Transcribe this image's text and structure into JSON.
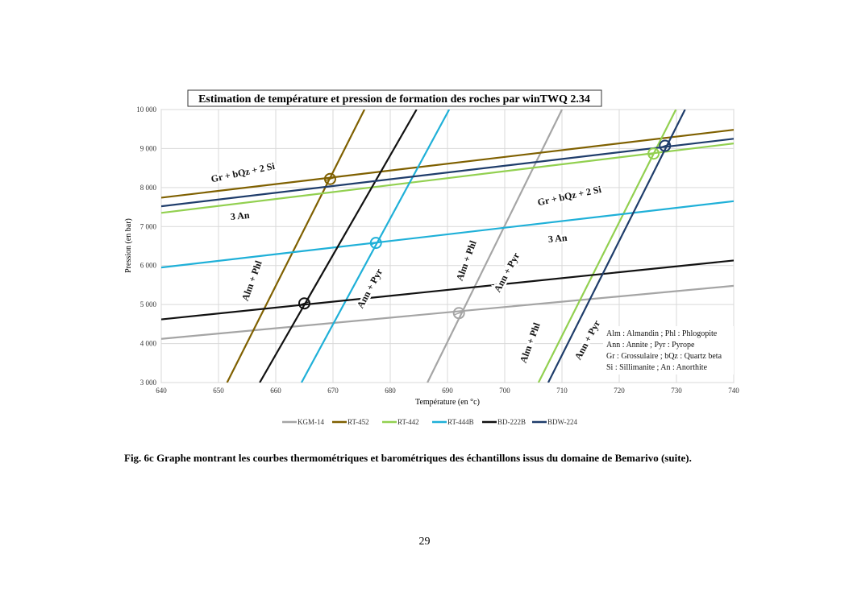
{
  "chart_data": {
    "type": "line",
    "title": "Estimation  de température et pression  de formation des roches par winTWQ  2.34",
    "x_label": "Température  (en °c)",
    "y_label": "Pression  (en bar)",
    "xlim": [
      640,
      740
    ],
    "ylim": [
      3000,
      10000
    ],
    "xticks": [
      640,
      650,
      660,
      670,
      680,
      690,
      700,
      710,
      720,
      730,
      740
    ],
    "yticks": [
      {
        "value": 3000,
        "label": "3 000"
      },
      {
        "value": 4000,
        "label": "4 000"
      },
      {
        "value": 5000,
        "label": "5 000"
      },
      {
        "value": 6000,
        "label": "6 000"
      },
      {
        "value": 7000,
        "label": "7 000"
      },
      {
        "value": 8000,
        "label": "8 000"
      },
      {
        "value": 9000,
        "label": "9 000"
      },
      {
        "value": 10000,
        "label": "10 000"
      }
    ],
    "grid": true,
    "series": [
      {
        "name": "KGM-14",
        "color": "#a5a5a5",
        "lines": [
          {
            "x": [
              640,
              740
            ],
            "values": [
              4120,
              5480
            ]
          },
          {
            "x": [
              686.5,
              710
            ],
            "values": [
              3000,
              10000
            ]
          }
        ],
        "intersection": {
          "x": 692,
          "y": 4780
        }
      },
      {
        "name": "RT-452",
        "color": "#7f6000",
        "lines": [
          {
            "x": [
              640,
              740
            ],
            "values": [
              7740,
              9480
            ]
          },
          {
            "x": [
              651.5,
              675.5
            ],
            "values": [
              3000,
              10000
            ]
          }
        ],
        "intersection": {
          "x": 669.5,
          "y": 8220
        }
      },
      {
        "name": "RT-442",
        "color": "#92d050",
        "lines": [
          {
            "x": [
              640,
              740
            ],
            "values": [
              7350,
              9130
            ]
          },
          {
            "x": [
              705.9,
              729.9
            ],
            "values": [
              3000,
              10000
            ]
          }
        ],
        "intersection": {
          "x": 726,
          "y": 8870
        }
      },
      {
        "name": "RT-444B",
        "color": "#1fb0d8",
        "lines": [
          {
            "x": [
              640,
              740
            ],
            "values": [
              5950,
              7650
            ]
          },
          {
            "x": [
              664.5,
              690.3
            ],
            "values": [
              3000,
              10000
            ]
          }
        ],
        "intersection": {
          "x": 677.5,
          "y": 6580
        }
      },
      {
        "name": "BD-222B",
        "color": "#111111",
        "lines": [
          {
            "x": [
              640,
              740
            ],
            "values": [
              4620,
              6130
            ]
          },
          {
            "x": [
              657.2,
              684.6
            ],
            "values": [
              3000,
              10000
            ]
          }
        ],
        "intersection": {
          "x": 665,
          "y": 5030
        }
      },
      {
        "name": "BDW-224",
        "color": "#1f3d6b",
        "lines": [
          {
            "x": [
              640,
              740
            ],
            "values": [
              7520,
              9250
            ]
          },
          {
            "x": [
              707.6,
              731.5
            ],
            "values": [
              3000,
              10000
            ]
          }
        ],
        "intersection": {
          "x": 728,
          "y": 9070
        }
      }
    ],
    "annotations": [
      "Gr  +  bQz  + 2 Si",
      "3 An",
      "Alm  + Phl",
      "Ann   +   Pyr",
      "Gr  +  bQz  + 2 Si",
      "3 An",
      "Alm  + Phl",
      "Ann   +   Pyr",
      "Alm  + Phl",
      "Ann   +   Pyr"
    ],
    "key": [
      "Alm : Almandin  ; Phl : Phlogopite",
      "Ann : Annite  ; Pyr : Pyrope",
      "Gr : Grossulaire  ; bQz : Quartz beta",
      "Si : Sillimanite  ; An : Anorthite"
    ]
  },
  "caption": "Fig. 6c Graphe montrant les courbes thermométriques et barométriques des échantillons issus du domaine de Bemarivo (suite).",
  "page_number": "29"
}
